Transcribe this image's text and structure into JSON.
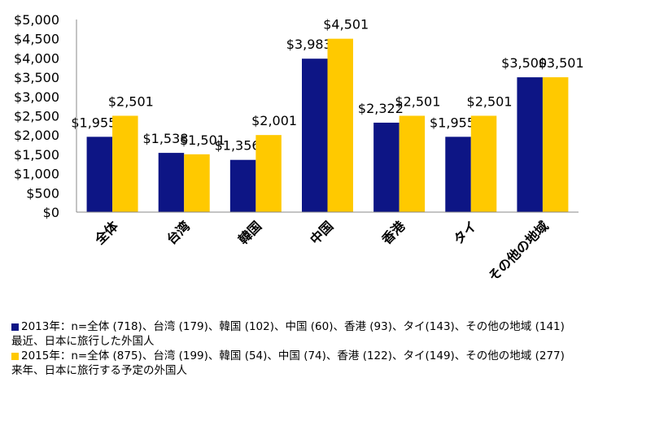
{
  "chart_data": {
    "type": "bar",
    "categories": [
      "全体",
      "台湾",
      "韓国",
      "中国",
      "香港",
      "タイ",
      "その他の地域"
    ],
    "series": [
      {
        "values": [
          1955,
          1538,
          1356,
          3983,
          2322,
          1955,
          3500
        ],
        "color": "#0d1585"
      },
      {
        "values": [
          2501,
          1501,
          2001,
          4501,
          2501,
          2501,
          3501
        ],
        "color": "#ffc900"
      }
    ],
    "data_labels": [
      [
        "$1,955",
        "$1,538",
        "$1,356",
        "$3,983",
        "$2,322",
        "$1,955",
        "$3,500"
      ],
      [
        "$2,501",
        "$1,501",
        "$2,001",
        "$4,501",
        "$2,501",
        "$2,501",
        "$3,501"
      ]
    ],
    "y_ticks": [
      "$0",
      "$500",
      "$1,000",
      "$1,500",
      "$2,000",
      "$2,500",
      "$3,000",
      "$3,500",
      "$4,000",
      "$4,500",
      "$5,000"
    ],
    "ylim": [
      0,
      5000
    ],
    "grid": false,
    "legend_position": "bottom-left"
  },
  "legend": {
    "items": [
      {
        "text": "2013年：n=全体 (718)、台湾 (179)、韓国 (102)、中国 (60)、香港 (93)、タイ(143)、その他の地域 (141)",
        "color": "#0d1585"
      },
      {
        "text": "2015年：n=全体 (875)、台湾 (199)、韓国 (54)、中国 (74)、香港 (122)、タイ(149)、その他の地域 (277)",
        "color": "#ffc900"
      }
    ],
    "notes": [
      "最近、日本に旅行した外国人",
      "来年、日本に旅行する予定の外国人"
    ]
  }
}
